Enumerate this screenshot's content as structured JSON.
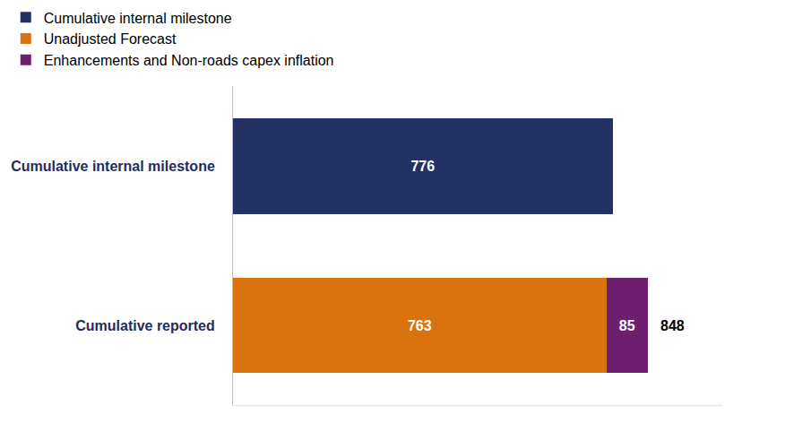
{
  "chart_data": {
    "type": "bar",
    "orientation": "horizontal",
    "stacked": true,
    "categories": [
      "Cumulative internal milestone",
      "Cumulative reported"
    ],
    "series": [
      {
        "name": "Cumulative internal milestone",
        "color": "#243164",
        "values": [
          776,
          null
        ]
      },
      {
        "name": "Unadjusted Forecast",
        "color": "#d9730d",
        "values": [
          null,
          763
        ]
      },
      {
        "name": "Enhancements and Non-roads capex inflation",
        "color": "#6e1e6e",
        "values": [
          null,
          85
        ]
      }
    ],
    "totals": [
      null,
      848
    ],
    "xlim": [
      0,
      1000
    ],
    "xticks": [],
    "data_labels": true,
    "tick_labels": "y",
    "legend": "top-left",
    "grid": false
  }
}
